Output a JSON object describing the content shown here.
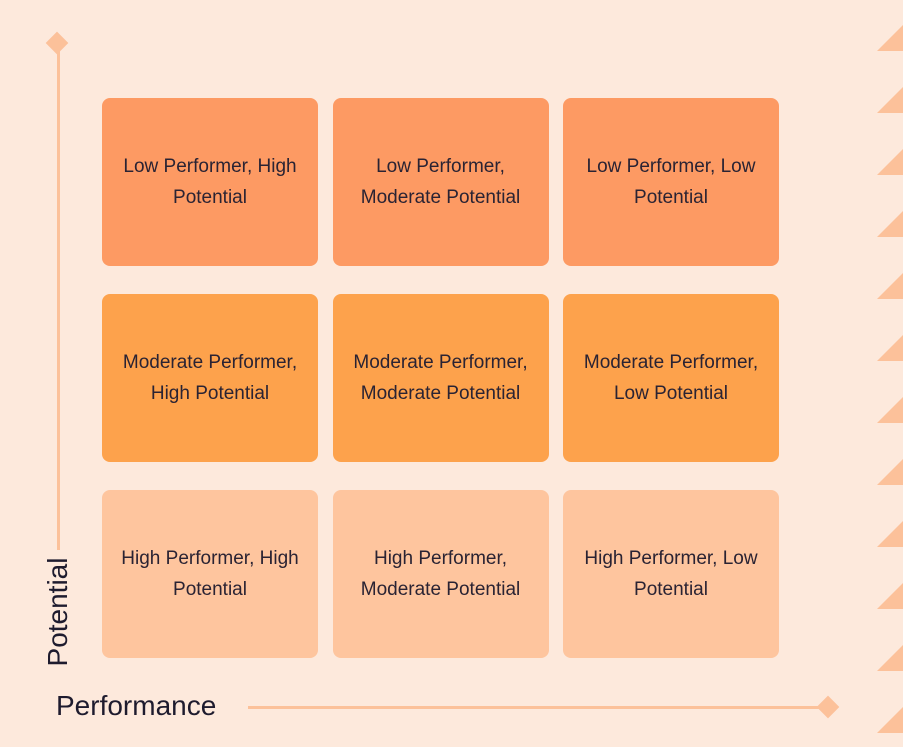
{
  "axes": {
    "y_label": "Potential",
    "x_label": "Performance"
  },
  "colors": {
    "background": "#fde9dc",
    "axis": "#fcc19a",
    "row_low_performer": "#fd9a63",
    "row_moderate_performer": "#fda24c",
    "row_high_performer": "#fec59e",
    "text": "#2a2333"
  },
  "grid": {
    "rows": [
      {
        "cells": [
          "Low Performer, High Potential",
          "Low Performer, Moderate Potential",
          "Low Performer, Low Potential"
        ]
      },
      {
        "cells": [
          "Moderate Performer, High Potential",
          "Moderate Performer, Moderate Potential",
          "Moderate Performer, Low Potential"
        ]
      },
      {
        "cells": [
          "High Performer, High Potential",
          "High Performer, Moderate Potential",
          "High Performer, Low Potential"
        ]
      }
    ]
  }
}
